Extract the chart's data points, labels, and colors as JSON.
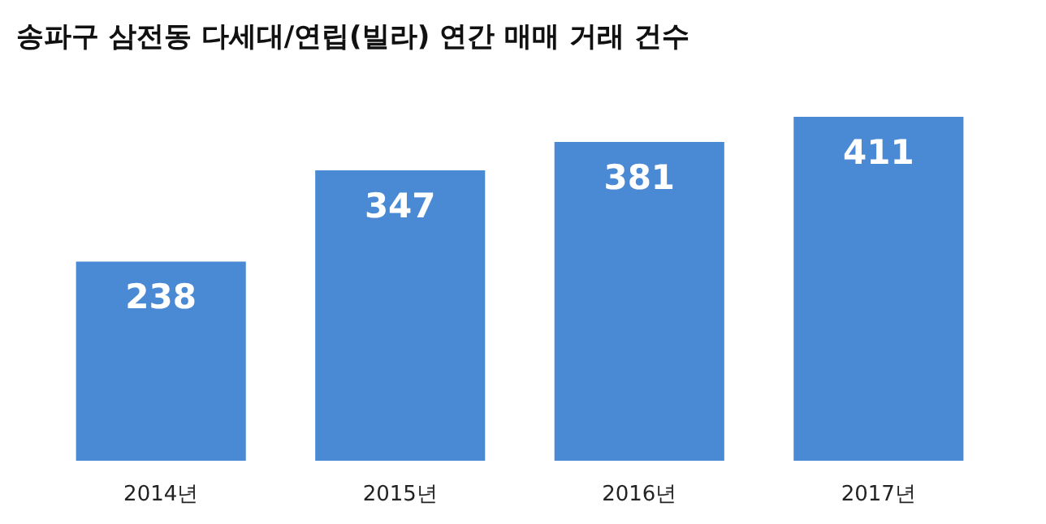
{
  "chart_data": {
    "type": "bar",
    "title": "송파구 삼전동 다세대/연립(빌라) 연간 매매 거래 건수",
    "categories": [
      "2014년",
      "2015년",
      "2016년",
      "2017년"
    ],
    "values": [
      238,
      347,
      381,
      411
    ],
    "color": "#4a8ad4",
    "data_labels": true
  }
}
